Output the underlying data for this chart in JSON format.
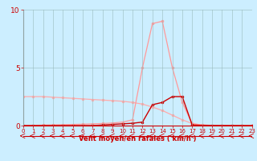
{
  "x": [
    0,
    1,
    2,
    3,
    4,
    5,
    6,
    7,
    8,
    9,
    10,
    11,
    12,
    13,
    14,
    15,
    16,
    17,
    18,
    19,
    20,
    21,
    22,
    23
  ],
  "line1_y": [
    2.5,
    2.5,
    2.5,
    2.45,
    2.4,
    2.35,
    2.3,
    2.25,
    2.2,
    2.15,
    2.1,
    2.0,
    1.85,
    1.6,
    1.3,
    0.9,
    0.5,
    0.18,
    0.06,
    0.02,
    0.01,
    0.005,
    0.002,
    0.001
  ],
  "line2_y": [
    0.0,
    0.02,
    0.04,
    0.06,
    0.08,
    0.1,
    0.12,
    0.15,
    0.18,
    0.22,
    0.3,
    0.5,
    5.0,
    8.8,
    9.0,
    5.0,
    2.0,
    0.15,
    0.04,
    0.02,
    0.01,
    0.005,
    0.002,
    0.001
  ],
  "line3_y": [
    0.0,
    0.0,
    0.0,
    0.0,
    0.0,
    0.0,
    0.0,
    0.0,
    0.05,
    0.1,
    0.15,
    0.2,
    0.3,
    1.8,
    2.0,
    2.5,
    2.5,
    0.05,
    0.02,
    0.01,
    0.005,
    0.002,
    0.001,
    0.0
  ],
  "color1": "#ffaaaa",
  "color2": "#ff9999",
  "color3": "#cc0000",
  "bg_color": "#cceeff",
  "grid_color": "#99bbbb",
  "xlabel": "Vent moyen/en rafales ( km/h )",
  "ylim": [
    0,
    10
  ],
  "xlim": [
    0,
    23
  ],
  "yticks": [
    0,
    5,
    10
  ],
  "xticks": [
    0,
    1,
    2,
    3,
    4,
    5,
    6,
    7,
    8,
    9,
    10,
    11,
    12,
    13,
    14,
    15,
    16,
    17,
    18,
    19,
    20,
    21,
    22,
    23
  ]
}
